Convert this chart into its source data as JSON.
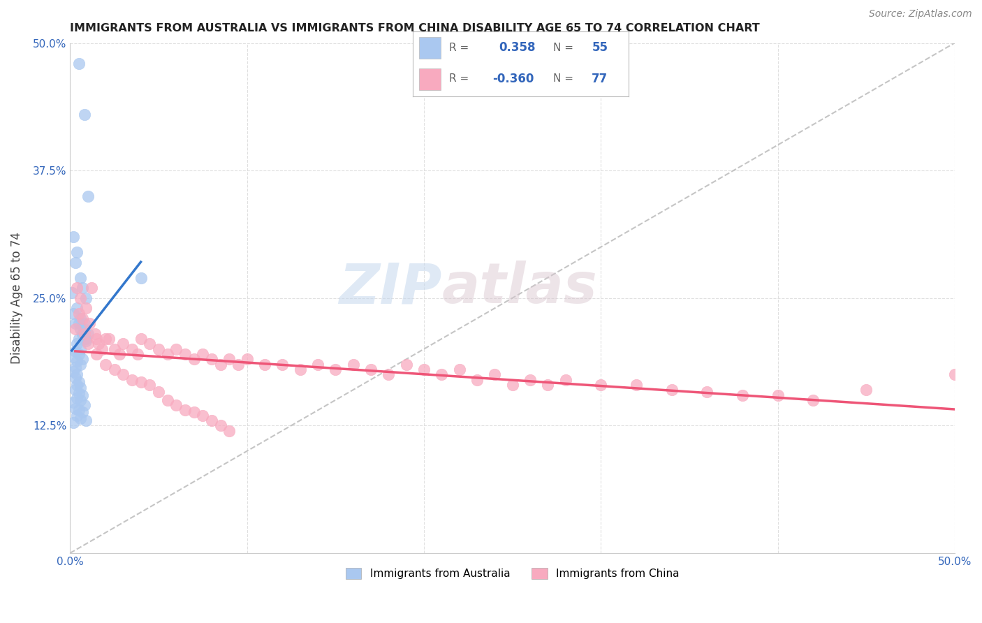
{
  "title": "IMMIGRANTS FROM AUSTRALIA VS IMMIGRANTS FROM CHINA DISABILITY AGE 65 TO 74 CORRELATION CHART",
  "source": "Source: ZipAtlas.com",
  "ylabel": "Disability Age 65 to 74",
  "xlim": [
    0.0,
    0.5
  ],
  "ylim": [
    0.0,
    0.5
  ],
  "xtick_positions": [
    0.0,
    0.1,
    0.2,
    0.3,
    0.4,
    0.5
  ],
  "xtick_labels": [
    "0.0%",
    "",
    "",
    "",
    "",
    "50.0%"
  ],
  "ytick_positions": [
    0.125,
    0.25,
    0.375,
    0.5
  ],
  "ytick_labels": [
    "12.5%",
    "25.0%",
    "37.5%",
    "50.0%"
  ],
  "legend_r_australia": "0.358",
  "legend_n_australia": "55",
  "legend_r_china": "-0.360",
  "legend_n_china": "77",
  "color_australia": "#aac8f0",
  "color_china": "#f8aabf",
  "trendline_australia": "#3377cc",
  "trendline_china": "#ee5577",
  "diagonal_color": "#bbbbbb",
  "background_color": "#ffffff",
  "grid_color": "#dddddd",
  "watermark_zip": "ZIP",
  "watermark_atlas": "atlas",
  "australia_x": [
    0.005,
    0.008,
    0.002,
    0.01,
    0.004,
    0.003,
    0.006,
    0.007,
    0.001,
    0.009,
    0.004,
    0.002,
    0.006,
    0.003,
    0.008,
    0.005,
    0.007,
    0.009,
    0.004,
    0.006,
    0.003,
    0.005,
    0.002,
    0.007,
    0.004,
    0.006,
    0.008,
    0.003,
    0.005,
    0.01,
    0.002,
    0.004,
    0.006,
    0.003,
    0.007,
    0.005,
    0.008,
    0.004,
    0.006,
    0.009,
    0.003,
    0.005,
    0.007,
    0.004,
    0.006,
    0.002,
    0.008,
    0.003,
    0.005,
    0.007,
    0.004,
    0.006,
    0.009,
    0.002,
    0.04
  ],
  "australia_y": [
    0.48,
    0.43,
    0.31,
    0.35,
    0.295,
    0.285,
    0.27,
    0.26,
    0.255,
    0.25,
    0.24,
    0.235,
    0.23,
    0.225,
    0.22,
    0.21,
    0.215,
    0.208,
    0.205,
    0.2,
    0.198,
    0.195,
    0.192,
    0.19,
    0.188,
    0.185,
    0.225,
    0.182,
    0.225,
    0.215,
    0.178,
    0.175,
    0.22,
    0.172,
    0.215,
    0.168,
    0.21,
    0.165,
    0.162,
    0.21,
    0.16,
    0.157,
    0.155,
    0.152,
    0.15,
    0.148,
    0.145,
    0.142,
    0.14,
    0.138,
    0.135,
    0.132,
    0.13,
    0.128,
    0.27
  ],
  "china_x": [
    0.004,
    0.006,
    0.009,
    0.005,
    0.007,
    0.011,
    0.003,
    0.008,
    0.012,
    0.015,
    0.01,
    0.018,
    0.014,
    0.02,
    0.025,
    0.016,
    0.022,
    0.03,
    0.035,
    0.028,
    0.04,
    0.045,
    0.038,
    0.05,
    0.055,
    0.06,
    0.065,
    0.07,
    0.075,
    0.08,
    0.085,
    0.09,
    0.095,
    0.1,
    0.11,
    0.12,
    0.13,
    0.14,
    0.15,
    0.16,
    0.17,
    0.18,
    0.19,
    0.2,
    0.21,
    0.22,
    0.23,
    0.24,
    0.25,
    0.26,
    0.27,
    0.28,
    0.3,
    0.32,
    0.34,
    0.36,
    0.38,
    0.4,
    0.42,
    0.45,
    0.015,
    0.02,
    0.025,
    0.03,
    0.035,
    0.04,
    0.045,
    0.05,
    0.055,
    0.06,
    0.065,
    0.07,
    0.075,
    0.08,
    0.085,
    0.09,
    0.5
  ],
  "china_y": [
    0.26,
    0.25,
    0.24,
    0.235,
    0.23,
    0.225,
    0.22,
    0.215,
    0.26,
    0.21,
    0.205,
    0.2,
    0.215,
    0.21,
    0.2,
    0.205,
    0.21,
    0.205,
    0.2,
    0.195,
    0.21,
    0.205,
    0.195,
    0.2,
    0.195,
    0.2,
    0.195,
    0.19,
    0.195,
    0.19,
    0.185,
    0.19,
    0.185,
    0.19,
    0.185,
    0.185,
    0.18,
    0.185,
    0.18,
    0.185,
    0.18,
    0.175,
    0.185,
    0.18,
    0.175,
    0.18,
    0.17,
    0.175,
    0.165,
    0.17,
    0.165,
    0.17,
    0.165,
    0.165,
    0.16,
    0.158,
    0.155,
    0.155,
    0.15,
    0.16,
    0.195,
    0.185,
    0.18,
    0.175,
    0.17,
    0.168,
    0.165,
    0.158,
    0.15,
    0.145,
    0.14,
    0.138,
    0.135,
    0.13,
    0.125,
    0.12,
    0.175
  ]
}
